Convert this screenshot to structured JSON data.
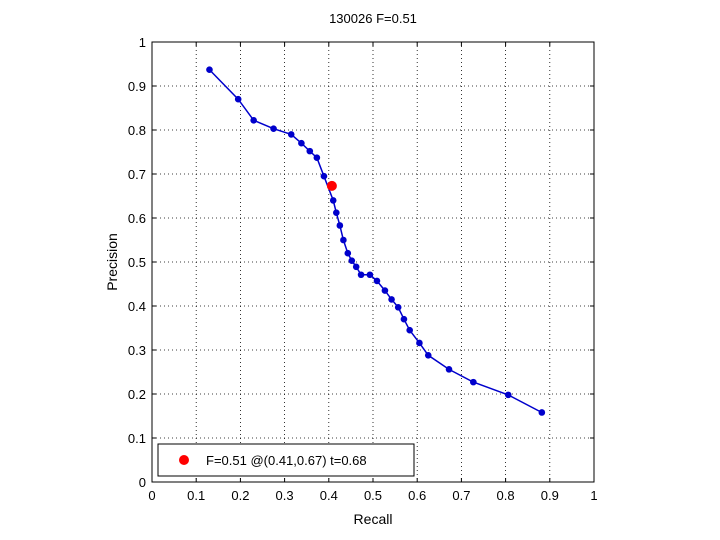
{
  "chart_data": {
    "type": "line",
    "title": "130026 F=0.51",
    "xlabel": "Recall",
    "ylabel": "Precision",
    "xlim": [
      0,
      1
    ],
    "ylim": [
      0,
      1
    ],
    "xticks": [
      0,
      0.1,
      0.2,
      0.3,
      0.4,
      0.5,
      0.6,
      0.7,
      0.8,
      0.9,
      1
    ],
    "yticks": [
      0,
      0.1,
      0.2,
      0.3,
      0.4,
      0.5,
      0.6,
      0.7,
      0.8,
      0.9,
      1
    ],
    "xtick_labels": [
      "0",
      "0.1",
      "0.2",
      "0.3",
      "0.4",
      "0.5",
      "0.6",
      "0.7",
      "0.8",
      "0.9",
      "1"
    ],
    "ytick_labels": [
      "0",
      "0.1",
      "0.2",
      "0.3",
      "0.4",
      "0.5",
      "0.6",
      "0.7",
      "0.8",
      "0.9",
      "1"
    ],
    "grid": true,
    "series": [
      {
        "color": "#0000cc",
        "x": [
          0.13,
          0.195,
          0.23,
          0.275,
          0.315,
          0.338,
          0.357,
          0.373,
          0.389,
          0.41,
          0.417,
          0.425,
          0.433,
          0.443,
          0.452,
          0.462,
          0.473,
          0.493,
          0.509,
          0.527,
          0.542,
          0.557,
          0.57,
          0.583,
          0.605,
          0.625,
          0.672,
          0.727,
          0.806,
          0.882
        ],
        "y": [
          0.937,
          0.87,
          0.822,
          0.803,
          0.79,
          0.77,
          0.752,
          0.737,
          0.695,
          0.64,
          0.612,
          0.583,
          0.55,
          0.52,
          0.503,
          0.489,
          0.471,
          0.471,
          0.457,
          0.435,
          0.415,
          0.397,
          0.37,
          0.345,
          0.316,
          0.288,
          0.256,
          0.227,
          0.198,
          0.158
        ]
      }
    ],
    "highlight": {
      "x": 0.407,
      "y": 0.673,
      "color": "#ff0000"
    },
    "legend": {
      "position": "bottom-left",
      "label": "F=0.51 @(0.41,0.67) t=0.68"
    }
  }
}
